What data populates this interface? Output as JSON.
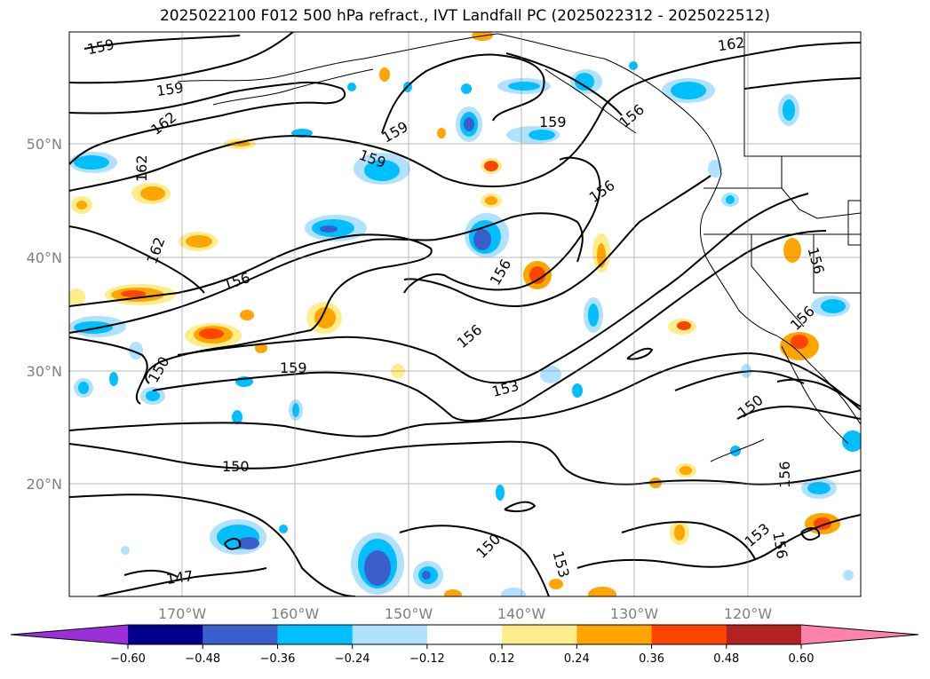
{
  "title": "2025022100 F012 500 hPa refract., IVT Landfall PC (2025022312 - 2025022512)",
  "longitude_labels": [
    "170°W",
    "160°W",
    "150°W",
    "140°W",
    "130°W",
    "120°W"
  ],
  "latitude_labels": [
    "50°N",
    "40°N",
    "30°N",
    "20°N"
  ],
  "contour_labels": [
    "159",
    "159",
    "162",
    "162",
    "162",
    "159",
    "159",
    "159",
    "156",
    "156",
    "156",
    "156",
    "156",
    "150",
    "159",
    "153",
    "150",
    "150",
    "147",
    "150",
    "153",
    "156",
    "153",
    "156",
    "156",
    "156",
    "162"
  ],
  "colorbar": {
    "ticks": [
      "−0.60",
      "−0.48",
      "−0.36",
      "−0.24",
      "−0.12",
      "0.12",
      "0.24",
      "0.36",
      "0.48",
      "0.60"
    ],
    "colors": [
      "#9b30d9",
      "#00008b",
      "#3a5fcd",
      "#00bfff",
      "#b0e2ff",
      "#ffffff",
      "#ffec8b",
      "#ffa500",
      "#ff4500",
      "#b22222",
      "#ff82ab"
    ]
  }
}
